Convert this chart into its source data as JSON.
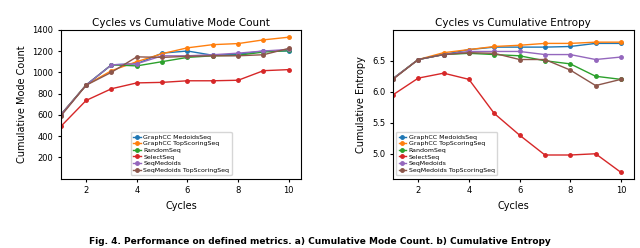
{
  "cycles": [
    1,
    2,
    3,
    4,
    5,
    6,
    7,
    8,
    9,
    10
  ],
  "left_title": "Cycles vs Cumulative Mode Count",
  "left_ylabel": "Cumulative Mode Count",
  "left_xlabel": "Cycles",
  "right_title": "Cycles vs Cumulative Entropy",
  "right_ylabel": "Cumulative Entropy",
  "right_xlabel": "Cycles",
  "caption": "Fig. 4. Performance on defined metrics. a) Cumulative Mode Count. b) Cumulative Entropy",
  "series": [
    {
      "label": "GraphCC MedoidsSeq",
      "color": "#1f77b4",
      "left_data": [
        600,
        880,
        1070,
        1080,
        1180,
        1200,
        1160,
        1170,
        1200,
        1200
      ],
      "right_data": [
        6.21,
        6.52,
        6.6,
        6.68,
        6.72,
        6.72,
        6.72,
        6.73,
        6.78,
        6.78
      ]
    },
    {
      "label": "GraphCC TopScoringSeq",
      "color": "#ff7f0e",
      "left_data": [
        600,
        880,
        1015,
        1100,
        1175,
        1230,
        1260,
        1270,
        1305,
        1330
      ],
      "right_data": [
        6.21,
        6.52,
        6.63,
        6.68,
        6.73,
        6.75,
        6.78,
        6.78,
        6.8,
        6.8
      ]
    },
    {
      "label": "RandomSeq",
      "color": "#2ca02c",
      "left_data": [
        600,
        880,
        1070,
        1060,
        1100,
        1140,
        1155,
        1160,
        1190,
        1205
      ],
      "right_data": [
        6.21,
        6.52,
        6.6,
        6.62,
        6.6,
        6.58,
        6.5,
        6.45,
        6.25,
        6.2
      ]
    },
    {
      "label": "SelectSeq",
      "color": "#d62728",
      "left_data": [
        490,
        735,
        845,
        900,
        905,
        920,
        920,
        925,
        1015,
        1025
      ],
      "right_data": [
        5.95,
        6.22,
        6.3,
        6.2,
        5.65,
        5.3,
        4.98,
        4.98,
        5.0,
        4.7
      ]
    },
    {
      "label": "SeqMedoids",
      "color": "#9467bd",
      "left_data": [
        600,
        880,
        1070,
        1080,
        1155,
        1155,
        1165,
        1180,
        1200,
        1215
      ],
      "right_data": [
        6.21,
        6.52,
        6.6,
        6.65,
        6.65,
        6.65,
        6.6,
        6.6,
        6.52,
        6.56
      ]
    },
    {
      "label": "SeqMedoids TopScoringSeq",
      "color": "#8c564b",
      "left_data": [
        588,
        878,
        1000,
        1145,
        1140,
        1150,
        1155,
        1155,
        1165,
        1225
      ],
      "right_data": [
        6.2,
        6.52,
        6.6,
        6.63,
        6.62,
        6.52,
        6.52,
        6.35,
        6.1,
        6.2
      ]
    }
  ],
  "left_ylim": [
    0,
    1400
  ],
  "right_ylim": [
    4.6,
    7.0
  ],
  "left_yticks": [
    200,
    400,
    600,
    800,
    1000,
    1200,
    1400
  ],
  "right_yticks": [
    5.0,
    5.5,
    6.0,
    6.5
  ],
  "xticks": [
    2,
    4,
    6,
    8,
    10
  ],
  "left_legend_loc": "lower center",
  "right_legend_loc": "lower left"
}
